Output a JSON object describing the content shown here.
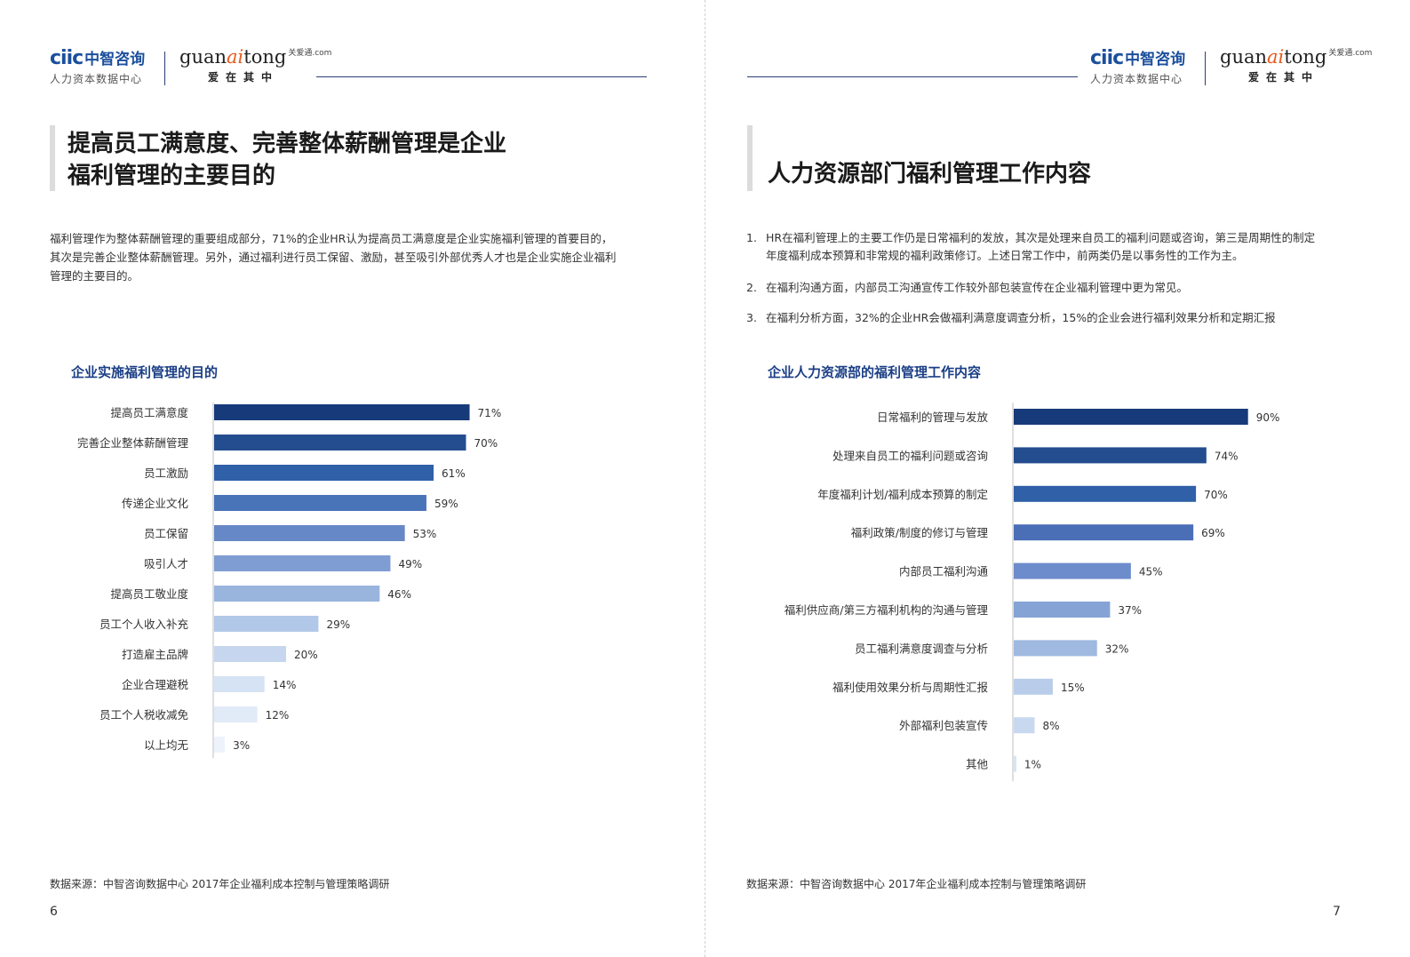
{
  "header": {
    "ciic_logo": "ciic",
    "ciic_logo_cn": "中智咨询",
    "ciic_sub": "人力资本数据中心",
    "gat_prefix": "guan",
    "gat_ai": "ai",
    "gat_suffix": "tong",
    "gat_com": "关爱通.com",
    "gat_sub": "爱在其中"
  },
  "left": {
    "title_line1": "提高员工满意度、完善整体薪酬管理是企业",
    "title_line2": "福利管理的主要目的",
    "paragraph_line1": "福利管理作为整体薪酬管理的重要组成部分，71%的企业HR认为提高员工满意度是企业实施福利管理的首要目的，",
    "paragraph_line2": "其次是完善企业整体薪酬管理。另外，通过福利进行员工保留、激励，甚至吸引外部优秀人才也是企业实施企业福利",
    "paragraph_line3": "管理的主要目的。",
    "source": "数据来源：中智咨询数据中心 2017年企业福利成本控制与管理策略调研",
    "page_number": "6"
  },
  "right": {
    "title": "人力资源部门福利管理工作内容",
    "items": [
      {
        "num": "1.",
        "line1": "HR在福利管理上的主要工作仍是日常福利的发放，其次是处理来自员工的福利问题或咨询，第三是周期性的制定",
        "line2": "年度福利成本预算和非常规的福利政策修订。上述日常工作中，前两类仍是以事务性的工作为主。"
      },
      {
        "num": "2.",
        "line1": "在福利沟通方面，内部员工沟通宣传工作较外部包装宣传在企业福利管理中更为常见。",
        "line2": ""
      },
      {
        "num": "3.",
        "line1": "在福利分析方面，32%的企业HR会做福利满意度调查分析，15%的企业会进行福利效果分析和定期汇报",
        "line2": ""
      }
    ],
    "source": "数据来源：中智咨询数据中心 2017年企业福利成本控制与管理策略调研",
    "page_number": "7"
  },
  "chart_data": [
    {
      "type": "bar",
      "orientation": "horizontal",
      "title": "企业实施福利管理的目的",
      "categories": [
        "提高员工满意度",
        "完善企业整体薪酬管理",
        "员工激励",
        "传递企业文化",
        "员工保留",
        "吸引人才",
        "提高员工敬业度",
        "员工个人收入补充",
        "打造雇主品牌",
        "企业合理避税",
        "员工个人税收减免",
        "以上均无"
      ],
      "values": [
        71,
        70,
        61,
        59,
        53,
        49,
        46,
        29,
        20,
        14,
        12,
        3
      ],
      "value_labels": [
        "71%",
        "70%",
        "61%",
        "59%",
        "53%",
        "49%",
        "46%",
        "29%",
        "20%",
        "14%",
        "12%",
        "3%"
      ],
      "unit": "%",
      "colors": [
        "#173a7a",
        "#244d8f",
        "#2f60a8",
        "#4a74b8",
        "#6788c6",
        "#7f9dd2",
        "#99b4dd",
        "#b2c8e8",
        "#c5d6ee",
        "#d6e3f4",
        "#e1eaf7",
        "#eef3fb"
      ],
      "grid": false,
      "legend": "none"
    },
    {
      "type": "bar",
      "orientation": "horizontal",
      "title": "企业人力资源部的福利管理工作内容",
      "categories": [
        "日常福利的管理与发放",
        "处理来自员工的福利问题或咨询",
        "年度福利计划/福利成本预算的制定",
        "福利政策/制度的修订与管理",
        "内部员工福利沟通",
        "福利供应商/第三方福利机构的沟通与管理",
        "员工福利满意度调查与分析",
        "福利使用效果分析与周期性汇报",
        "外部福利包装宣传",
        "其他"
      ],
      "values": [
        90,
        74,
        70,
        69,
        45,
        37,
        32,
        15,
        8,
        1
      ],
      "value_labels": [
        "90%",
        "74%",
        "70%",
        "69%",
        "45%",
        "37%",
        "32%",
        "15%",
        "8%",
        "1%"
      ],
      "unit": "%",
      "colors": [
        "#173a7a",
        "#244d8f",
        "#2f60a8",
        "#4a6fb7",
        "#6d8ccb",
        "#86a3d6",
        "#9fb9e0",
        "#b9cdea",
        "#c8d8ef",
        "#d8e4f4"
      ],
      "grid": false,
      "legend": "none"
    }
  ]
}
